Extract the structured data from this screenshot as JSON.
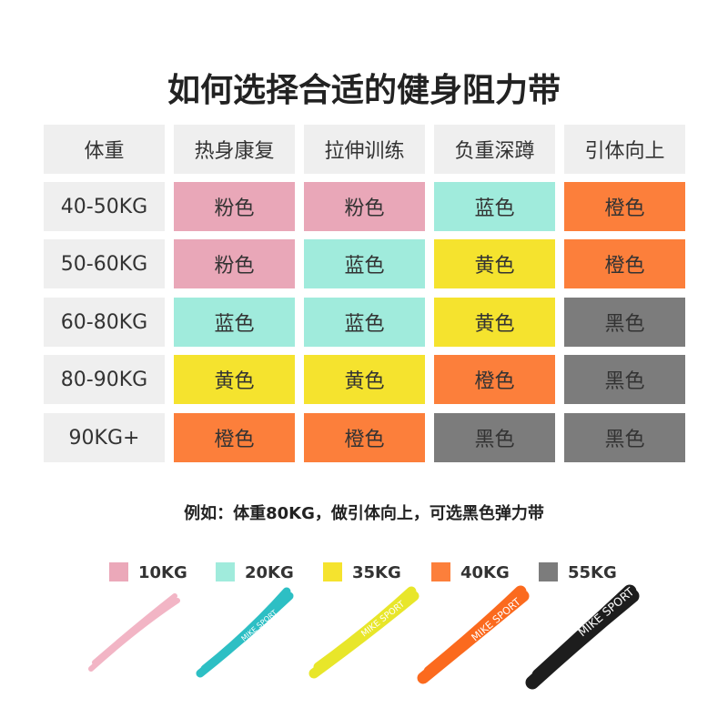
{
  "title": "如何选择合适的健身阻力带",
  "table": {
    "header": [
      "体重",
      "热身康复",
      "拉伸训练",
      "负重深蹲",
      "引体向上"
    ],
    "rows": [
      [
        {
          "text": "40-50KG"
        },
        {
          "text": "粉色",
          "color": "#e9a7b8"
        },
        {
          "text": "粉色",
          "color": "#e9a7b8"
        },
        {
          "text": "蓝色",
          "color": "#a0ebdc"
        },
        {
          "text": "橙色",
          "color": "#fc7f3b"
        }
      ],
      [
        {
          "text": "50-60KG"
        },
        {
          "text": "粉色",
          "color": "#e9a7b8"
        },
        {
          "text": "蓝色",
          "color": "#a0ebdc"
        },
        {
          "text": "黄色",
          "color": "#f5e32e"
        },
        {
          "text": "橙色",
          "color": "#fc7f3b"
        }
      ],
      [
        {
          "text": "60-80KG"
        },
        {
          "text": "蓝色",
          "color": "#a0ebdc"
        },
        {
          "text": "蓝色",
          "color": "#a0ebdc"
        },
        {
          "text": "黄色",
          "color": "#f5e32e"
        },
        {
          "text": "黑色",
          "color": "#7c7c7c"
        }
      ],
      [
        {
          "text": "80-90KG"
        },
        {
          "text": "黄色",
          "color": "#f5e32e"
        },
        {
          "text": "黄色",
          "color": "#f5e32e"
        },
        {
          "text": "橙色",
          "color": "#fc7f3b"
        },
        {
          "text": "黑色",
          "color": "#7c7c7c"
        }
      ],
      [
        {
          "text": "90KG+"
        },
        {
          "text": "橙色",
          "color": "#fc7f3b"
        },
        {
          "text": "橙色",
          "color": "#fc7f3b"
        },
        {
          "text": "黑色",
          "color": "#7c7c7c"
        },
        {
          "text": "黑色",
          "color": "#7c7c7c"
        }
      ]
    ]
  },
  "example": "例如：体重80KG，做引体向上，可选黑色弹力带",
  "legend": [
    {
      "label": "10KG",
      "color": "#eba8b9"
    },
    {
      "label": "20KG",
      "color": "#a0ebdc"
    },
    {
      "label": "35KG",
      "color": "#f5e32e"
    },
    {
      "label": "40KG",
      "color": "#fc7f3b"
    },
    {
      "label": "55KG",
      "color": "#7c7c7c"
    }
  ],
  "brand": "MIKE SPORT"
}
